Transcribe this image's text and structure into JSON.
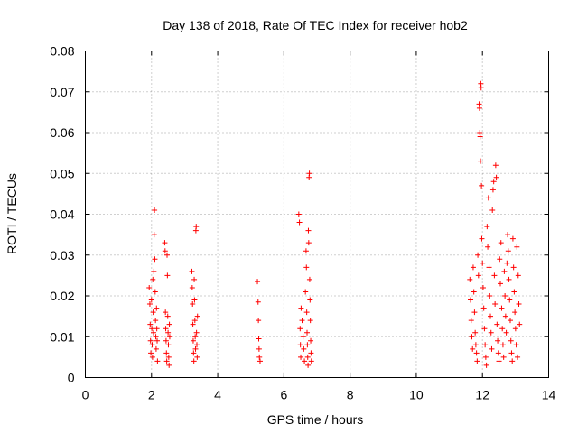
{
  "chart_data": {
    "type": "scatter",
    "title": "Day 138 of 2018, Rate Of TEC Index for receiver hob2",
    "xlabel": "GPS time / hours",
    "ylabel": "ROTI / TECUs",
    "xlim": [
      0,
      14
    ],
    "ylim": [
      0,
      0.08
    ],
    "xticks": [
      0,
      2,
      4,
      6,
      8,
      10,
      12,
      14
    ],
    "xtick_labels": [
      "0",
      "2",
      "4",
      "6",
      "8",
      "10",
      "12",
      "14"
    ],
    "yticks": [
      0,
      0.01,
      0.02,
      0.03,
      0.04,
      0.05,
      0.06,
      0.07,
      0.08
    ],
    "ytick_labels": [
      "0",
      "0.01",
      "0.02",
      "0.03",
      "0.04",
      "0.05",
      "0.06",
      "0.07",
      "0.08"
    ],
    "grid": true,
    "marker": "+",
    "marker_color": "#ff0000",
    "series": [
      {
        "name": "ROTI",
        "points": [
          [
            1.93,
            0.022
          ],
          [
            1.95,
            0.018
          ],
          [
            1.96,
            0.013
          ],
          [
            1.97,
            0.009
          ],
          [
            1.98,
            0.006
          ],
          [
            2.0,
            0.019
          ],
          [
            2.01,
            0.012
          ],
          [
            2.02,
            0.008
          ],
          [
            2.03,
            0.005
          ],
          [
            2.04,
            0.024
          ],
          [
            2.05,
            0.016
          ],
          [
            2.06,
            0.011
          ],
          [
            2.07,
            0.026
          ],
          [
            2.08,
            0.035
          ],
          [
            2.09,
            0.041
          ],
          [
            2.1,
            0.029
          ],
          [
            2.11,
            0.021
          ],
          [
            2.12,
            0.014
          ],
          [
            2.13,
            0.01
          ],
          [
            2.14,
            0.007
          ],
          [
            2.15,
            0.017
          ],
          [
            2.16,
            0.012
          ],
          [
            2.17,
            0.009
          ],
          [
            2.18,
            0.004
          ],
          [
            2.4,
            0.033
          ],
          [
            2.41,
            0.031
          ],
          [
            2.42,
            0.016
          ],
          [
            2.43,
            0.012
          ],
          [
            2.44,
            0.009
          ],
          [
            2.45,
            0.006
          ],
          [
            2.46,
            0.004
          ],
          [
            2.47,
            0.03
          ],
          [
            2.48,
            0.025
          ],
          [
            2.49,
            0.015
          ],
          [
            2.5,
            0.011
          ],
          [
            2.51,
            0.008
          ],
          [
            2.52,
            0.005
          ],
          [
            2.53,
            0.003
          ],
          [
            2.54,
            0.013
          ],
          [
            2.55,
            0.01
          ],
          [
            3.22,
            0.026
          ],
          [
            3.23,
            0.022
          ],
          [
            3.24,
            0.018
          ],
          [
            3.25,
            0.013
          ],
          [
            3.26,
            0.009
          ],
          [
            3.27,
            0.006
          ],
          [
            3.28,
            0.004
          ],
          [
            3.29,
            0.024
          ],
          [
            3.3,
            0.019
          ],
          [
            3.31,
            0.014
          ],
          [
            3.32,
            0.01
          ],
          [
            3.33,
            0.007
          ],
          [
            3.34,
            0.036
          ],
          [
            3.35,
            0.037
          ],
          [
            3.36,
            0.011
          ],
          [
            3.37,
            0.008
          ],
          [
            3.38,
            0.005
          ],
          [
            3.39,
            0.015
          ],
          [
            5.2,
            0.0235
          ],
          [
            5.22,
            0.0185
          ],
          [
            5.23,
            0.014
          ],
          [
            5.24,
            0.0095
          ],
          [
            5.25,
            0.007
          ],
          [
            5.26,
            0.005
          ],
          [
            5.28,
            0.004
          ],
          [
            6.45,
            0.04
          ],
          [
            6.47,
            0.038
          ],
          [
            6.49,
            0.012
          ],
          [
            6.5,
            0.008
          ],
          [
            6.51,
            0.005
          ],
          [
            6.52,
            0.017
          ],
          [
            6.55,
            0.014
          ],
          [
            6.58,
            0.01
          ],
          [
            6.6,
            0.007
          ],
          [
            6.62,
            0.004
          ],
          [
            6.65,
            0.021
          ],
          [
            6.67,
            0.031
          ],
          [
            6.68,
            0.027
          ],
          [
            6.69,
            0.016
          ],
          [
            6.7,
            0.011
          ],
          [
            6.71,
            0.008
          ],
          [
            6.72,
            0.005
          ],
          [
            6.73,
            0.003
          ],
          [
            6.74,
            0.036
          ],
          [
            6.75,
            0.033
          ],
          [
            6.76,
            0.049
          ],
          [
            6.77,
            0.05
          ],
          [
            6.78,
            0.024
          ],
          [
            6.79,
            0.019
          ],
          [
            6.8,
            0.014
          ],
          [
            6.81,
            0.009
          ],
          [
            6.82,
            0.006
          ],
          [
            6.83,
            0.004
          ],
          [
            11.62,
            0.024
          ],
          [
            11.64,
            0.019
          ],
          [
            11.66,
            0.014
          ],
          [
            11.68,
            0.01
          ],
          [
            11.7,
            0.007
          ],
          [
            11.72,
            0.027
          ],
          [
            11.74,
            0.021
          ],
          [
            11.76,
            0.016
          ],
          [
            11.78,
            0.011
          ],
          [
            11.8,
            0.008
          ],
          [
            11.82,
            0.006
          ],
          [
            11.84,
            0.004
          ],
          [
            11.86,
            0.03
          ],
          [
            11.88,
            0.025
          ],
          [
            11.9,
            0.067
          ],
          [
            11.91,
            0.066
          ],
          [
            11.92,
            0.06
          ],
          [
            11.93,
            0.059
          ],
          [
            11.94,
            0.053
          ],
          [
            11.95,
            0.072
          ],
          [
            11.96,
            0.071
          ],
          [
            11.97,
            0.047
          ],
          [
            11.98,
            0.034
          ],
          [
            12.0,
            0.028
          ],
          [
            12.02,
            0.022
          ],
          [
            12.04,
            0.017
          ],
          [
            12.06,
            0.012
          ],
          [
            12.08,
            0.008
          ],
          [
            12.1,
            0.005
          ],
          [
            12.12,
            0.003
          ],
          [
            12.14,
            0.037
          ],
          [
            12.16,
            0.032
          ],
          [
            12.18,
            0.044
          ],
          [
            12.2,
            0.027
          ],
          [
            12.22,
            0.02
          ],
          [
            12.24,
            0.015
          ],
          [
            12.26,
            0.011
          ],
          [
            12.28,
            0.007
          ],
          [
            12.3,
            0.041
          ],
          [
            12.32,
            0.046
          ],
          [
            12.34,
            0.048
          ],
          [
            12.36,
            0.025
          ],
          [
            12.38,
            0.018
          ],
          [
            12.4,
            0.052
          ],
          [
            12.42,
            0.049
          ],
          [
            12.44,
            0.013
          ],
          [
            12.46,
            0.009
          ],
          [
            12.48,
            0.006
          ],
          [
            12.5,
            0.004
          ],
          [
            12.52,
            0.029
          ],
          [
            12.54,
            0.023
          ],
          [
            12.56,
            0.033
          ],
          [
            12.58,
            0.017
          ],
          [
            12.6,
            0.012
          ],
          [
            12.62,
            0.008
          ],
          [
            12.64,
            0.005
          ],
          [
            12.66,
            0.026
          ],
          [
            12.68,
            0.02
          ],
          [
            12.7,
            0.015
          ],
          [
            12.72,
            0.011
          ],
          [
            12.74,
            0.028
          ],
          [
            12.76,
            0.035
          ],
          [
            12.78,
            0.031
          ],
          [
            12.8,
            0.024
          ],
          [
            12.82,
            0.019
          ],
          [
            12.84,
            0.014
          ],
          [
            12.86,
            0.009
          ],
          [
            12.88,
            0.006
          ],
          [
            12.9,
            0.004
          ],
          [
            12.92,
            0.034
          ],
          [
            12.94,
            0.027
          ],
          [
            12.96,
            0.021
          ],
          [
            12.98,
            0.016
          ],
          [
            13.0,
            0.012
          ],
          [
            13.02,
            0.008
          ],
          [
            13.04,
            0.032
          ],
          [
            13.06,
            0.005
          ],
          [
            13.08,
            0.025
          ],
          [
            13.1,
            0.018
          ],
          [
            13.12,
            0.013
          ]
        ]
      }
    ]
  }
}
